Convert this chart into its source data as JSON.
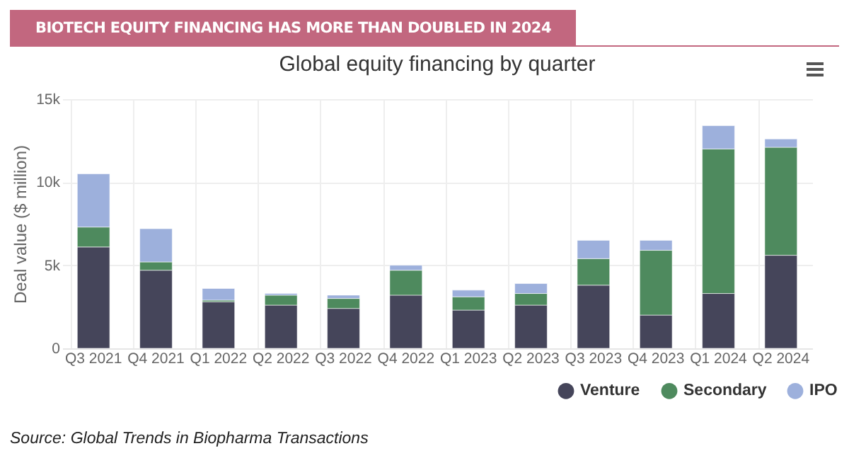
{
  "chart_data": {
    "type": "bar",
    "subtitle": "BIOTECH EQUITY FINANCING HAS MORE THAN DOUBLED IN 2024",
    "title": "Global equity financing by quarter",
    "ylabel": "Deal value ($ million)",
    "categories": [
      "Q3 2021",
      "Q4 2021",
      "Q1 2022",
      "Q2 2022",
      "Q3 2022",
      "Q4 2022",
      "Q1 2023",
      "Q2 2023",
      "Q3 2023",
      "Q4 2023",
      "Q1 2024",
      "Q2 2024"
    ],
    "series": [
      {
        "name": "Venture",
        "color": "#45455a",
        "values": [
          6100,
          4700,
          2800,
          2600,
          2400,
          3200,
          2300,
          2600,
          3800,
          2000,
          3300,
          5600
        ]
      },
      {
        "name": "Secondary",
        "color": "#4e8a5e",
        "values": [
          1200,
          500,
          100,
          600,
          600,
          1500,
          800,
          700,
          1600,
          3900,
          8700,
          6500
        ]
      },
      {
        "name": "IPO",
        "color": "#9db0dc",
        "values": [
          3200,
          2000,
          700,
          100,
          200,
          300,
          400,
          600,
          1100,
          600,
          1400,
          500
        ]
      }
    ],
    "stacked": true,
    "ylim": [
      0,
      15000
    ],
    "yticks": [
      {
        "value": 0,
        "label": "0"
      },
      {
        "value": 5000,
        "label": "5k"
      },
      {
        "value": 10000,
        "label": "10k"
      },
      {
        "value": 15000,
        "label": "15k"
      }
    ],
    "grid": true,
    "legend": "bottom right",
    "annotations": [
      "Source: Global Trends in Biopharma Transactions"
    ]
  }
}
